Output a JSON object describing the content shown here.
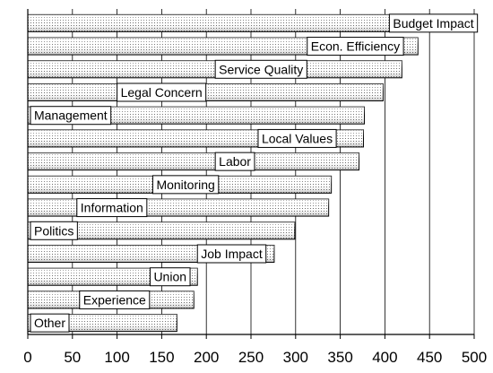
{
  "chart_data": {
    "type": "bar",
    "orientation": "horizontal",
    "categories": [
      "Budget Impact",
      "Econ. Efficiency",
      "Service Quality",
      "Legal Concern",
      "Management",
      "Local Values",
      "Labor",
      "Monitoring",
      "Information",
      "Politics",
      "Job Impact",
      "Union",
      "Experience",
      "Other"
    ],
    "values": [
      482,
      437,
      419,
      398,
      377,
      376,
      371,
      340,
      337,
      299,
      276,
      190,
      186,
      167
    ],
    "xlim": [
      0,
      500
    ],
    "xticks": [
      0,
      50,
      100,
      150,
      200,
      250,
      300,
      350,
      400,
      450,
      500
    ],
    "grid": true,
    "legend": "none"
  },
  "colors": {
    "bar_face": "#ffffff",
    "bar_dots": "#555555",
    "bar_edge": "#000000",
    "gridline": "#000000"
  }
}
